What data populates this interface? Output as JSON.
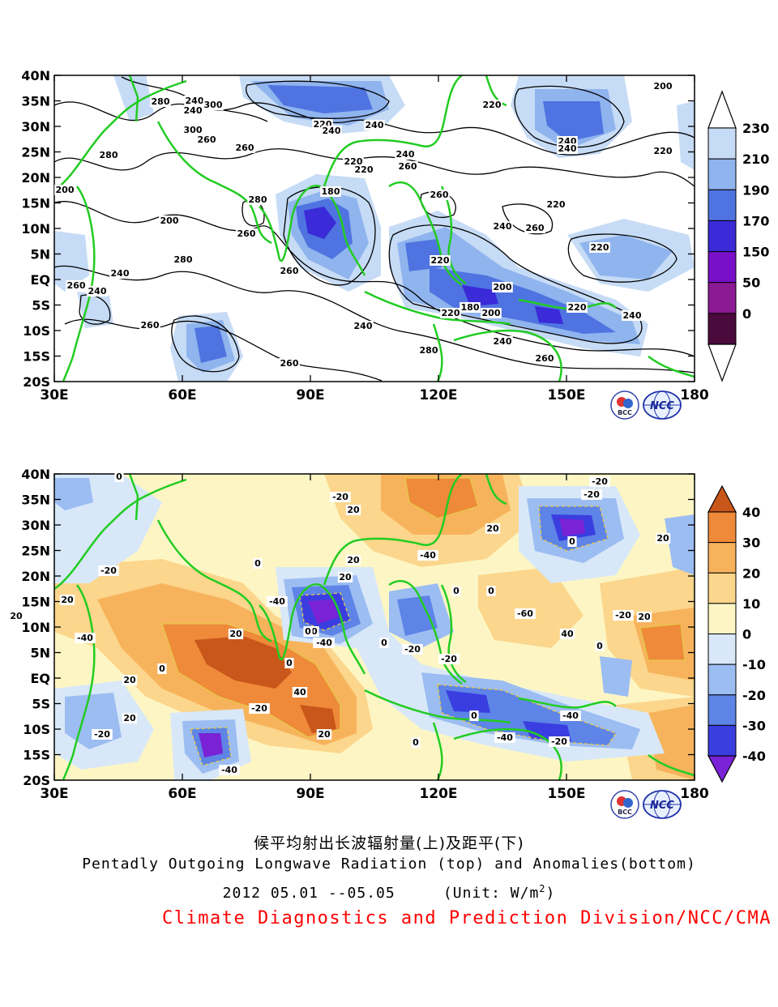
{
  "top_panel": {
    "x_ticks": [
      "30E",
      "60E",
      "90E",
      "120E",
      "150E",
      "180"
    ],
    "y_ticks": [
      "40N",
      "35N",
      "30N",
      "25N",
      "20N",
      "15N",
      "10N",
      "5N",
      "EQ",
      "5S",
      "10S",
      "15S",
      "20S"
    ],
    "colorbar": {
      "labels": [
        "230",
        "210",
        "190",
        "170",
        "150",
        "50",
        "0"
      ],
      "colors": [
        "#c6dbf5",
        "#8fb4ee",
        "#4f73e0",
        "#3a2ad8",
        "#7a0fc9",
        "#8c1a95",
        "#4a0a3c"
      ]
    },
    "contour_labels": [
      "240",
      "280",
      "240",
      "300",
      "300",
      "260",
      "280",
      "200",
      "220",
      "240",
      "240",
      "220",
      "240",
      "240",
      "200",
      "220",
      "260",
      "200",
      "280",
      "260",
      "280",
      "240",
      "260",
      "240",
      "220",
      "220",
      "240",
      "260",
      "180",
      "260",
      "220",
      "240",
      "260",
      "220",
      "240",
      "220",
      "200",
      "180",
      "200",
      "220",
      "220",
      "240",
      "260",
      "260",
      "280",
      "240",
      "260",
      "260"
    ],
    "logos": [
      "BCC",
      "NCC"
    ]
  },
  "bottom_panel": {
    "x_ticks": [
      "30E",
      "60E",
      "90E",
      "120E",
      "150E",
      "180"
    ],
    "y_ticks": [
      "40N",
      "35N",
      "30N",
      "25N",
      "20N",
      "15N",
      "10N",
      "5N",
      "EQ",
      "5S",
      "10S",
      "15S",
      "20S"
    ],
    "colorbar": {
      "labels": [
        "40",
        "30",
        "20",
        "10",
        "0",
        "-10",
        "-20",
        "-30",
        "-40"
      ],
      "colors": [
        "#c9561a",
        "#ee8a3a",
        "#f7b35c",
        "#fbd68c",
        "#fdf6c4",
        "#d8e8f8",
        "#9cbdf2",
        "#5d84e6",
        "#3a3ee0",
        "#7a22d6"
      ]
    },
    "contour_labels": [
      "0",
      "-20",
      "20",
      "20",
      "-20",
      "0",
      "20",
      "-40",
      "0",
      "-20",
      "20",
      "20",
      "-40",
      "20",
      "20",
      "0",
      "0",
      "-20",
      "20",
      "-60",
      "0",
      "-40",
      "0",
      "-40",
      "-20",
      "-20",
      "20",
      "40",
      "0",
      "0",
      "20",
      "0",
      "40",
      "20",
      "20",
      "0",
      "0",
      "-40",
      "-40",
      "-20",
      "-20",
      "-40",
      "-20",
      "0",
      "-40",
      "20",
      "-20"
    ],
    "logos": [
      "BCC",
      "NCC"
    ]
  },
  "caption": {
    "chinese_title": "候平均射出长波辐射量(上)及距平(下)",
    "english_title": "Pentadly Outgoing Longwave Radiation (top) and Anomalies(bottom)",
    "date_line": "2012  05.01 --05.05",
    "unit_prefix": "(Unit: W/m",
    "unit_sup": "2",
    "unit_suffix": ")",
    "institution": "Climate Diagnostics and Prediction Division/NCC/CMA"
  }
}
